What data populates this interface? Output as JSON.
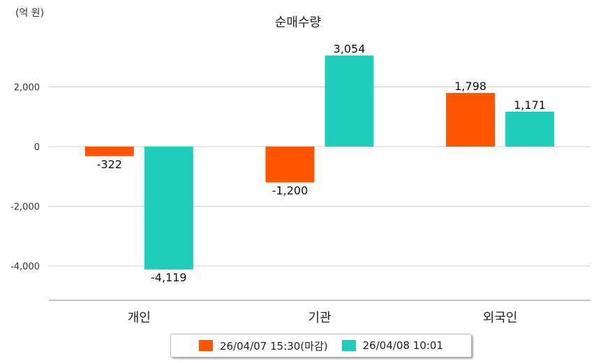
{
  "unit_label": "(억 원)",
  "chart_data": {
    "type": "bar",
    "title": "순매수량",
    "categories": [
      "개인",
      "기관",
      "외국인"
    ],
    "series": [
      {
        "name": "26/04/07 15:30(마감)",
        "color": "#FF5500",
        "values": [
          -322,
          -1200,
          1798
        ]
      },
      {
        "name": "26/04/08 10:01",
        "color": "#1ECDBC",
        "values": [
          -4119,
          3054,
          1171
        ]
      }
    ],
    "data_labels": [
      [
        "-322",
        "-1,200",
        "1,798"
      ],
      [
        "-4,119",
        "3,054",
        "1,171"
      ]
    ],
    "yticks": [
      2000,
      0,
      -2000,
      -4000
    ],
    "ytick_labels": [
      "2,000",
      "0",
      "-2,000",
      "-4,000"
    ],
    "ylim": [
      -5150,
      3900
    ],
    "grid": true,
    "legend_position": "bottom"
  }
}
